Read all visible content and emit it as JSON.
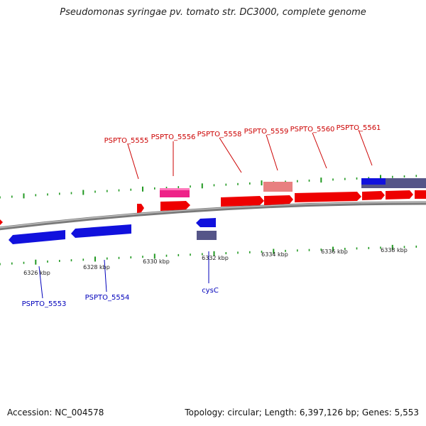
{
  "title": "Pseudomonas syringae pv. tomato str. DC3000, complete genome",
  "footer": {
    "accession": "Accession: NC_004578",
    "summary": "Topology: circular; Length: 6,397,126 bp; Genes: 5,553"
  },
  "colors": {
    "forward_gene": "#ee0000",
    "reverse_gene": "#1111dd",
    "pseudogene_pink": "#ee2288",
    "rna_light": "#e88080",
    "operon_purple": "#555588",
    "backbone": "#888888",
    "tick": "#229922",
    "top_label": "#cc0000",
    "bottom_label": "#0000bb"
  },
  "scale_labels": [
    "6326 kbp",
    "6328 kbp",
    "6330 kbp",
    "6332 kbp",
    "6334 kbp",
    "6336 kbp",
    "6338 kbp"
  ],
  "top_gene_labels": [
    "PSPTO_5555",
    "PSPTO_5556",
    "PSPTO_5558",
    "PSPTO_5559",
    "PSPTO_5560",
    "PSPTO_5561"
  ],
  "bottom_gene_labels": [
    "PSPTO_5553",
    "PSPTO_5554",
    "cysC"
  ]
}
